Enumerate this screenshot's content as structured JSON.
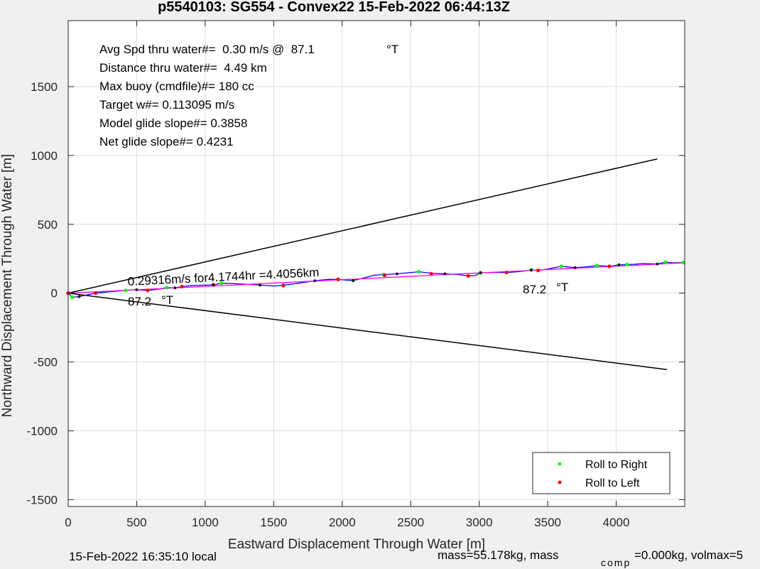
{
  "chart_data": {
    "type": "line",
    "title": "p5540103: SG554 - Convex22 15-Feb-2022 06:44:13Z",
    "xlabel": "Eastward Displacement Through Water [m]",
    "ylabel": "Northward Displacement Through Water [m]",
    "xlim": [
      0,
      4500
    ],
    "ylim": [
      -1550,
      1980
    ],
    "x_ticks": [
      0,
      500,
      1000,
      1500,
      2000,
      2500,
      3000,
      3500,
      4000
    ],
    "y_ticks": [
      -1500,
      -1000,
      -500,
      0,
      500,
      1000,
      1500
    ],
    "grid": true,
    "legend_position": "bottom-right",
    "info_lines": [
      "Avg Spd thru water#=  0.30 m/s @  87.1",
      "Distance thru water#=  4.49 km",
      "Max buoy (cmdfile)#= 180 cc",
      "Target w#= 0.113095 m/s",
      "Model glide slope#= 0.3858",
      "Net glide slope#= 0.4231"
    ],
    "info_unit": "°T",
    "annotations": {
      "speed_text": "0.29316m/s for4.1744hr =4.4056km",
      "heading_left": "87.2",
      "heading_right": "87.2",
      "heading_unit": "°T"
    },
    "footer_left": "15-Feb-2022 16:35:10 local",
    "footer_right_main": "mass=55.178kg, mass",
    "footer_right_sub": "comp",
    "footer_right_rest": "=0.000kg, volmax=5",
    "cone_lines": [
      {
        "name": "upper-bound",
        "x": [
          0,
          4300
        ],
        "y": [
          0,
          975
        ],
        "color": "#000000"
      },
      {
        "name": "lower-bound",
        "x": [
          0,
          4370
        ],
        "y": [
          0,
          -555
        ],
        "color": "#000000"
      }
    ],
    "series": [
      {
        "name": "track",
        "color": "#0000ff",
        "x": [
          0,
          30,
          80,
          200,
          300,
          420,
          500,
          580,
          650,
          720,
          780,
          830,
          900,
          1000,
          1060,
          1120,
          1200,
          1300,
          1400,
          1500,
          1580,
          1680,
          1800,
          1900,
          1970,
          2030,
          2080,
          2150,
          2230,
          2300,
          2400,
          2480,
          2560,
          2650,
          2750,
          2850,
          2920,
          2970,
          3010,
          3100,
          3200,
          3280,
          3380,
          3430,
          3500,
          3600,
          3700,
          3780,
          3860,
          3950,
          4020,
          4080,
          4130,
          4200,
          4300,
          4360,
          4420,
          4500
        ],
        "y": [
          0,
          -30,
          -25,
          0,
          10,
          20,
          25,
          20,
          28,
          40,
          38,
          48,
          55,
          58,
          60,
          72,
          70,
          65,
          58,
          52,
          58,
          72,
          90,
          100,
          100,
          95,
          92,
          108,
          130,
          135,
          140,
          148,
          155,
          145,
          140,
          135,
          125,
          128,
          148,
          150,
          150,
          155,
          168,
          165,
          175,
          195,
          185,
          190,
          200,
          195,
          205,
          208,
          210,
          215,
          212,
          225,
          220,
          222
        ]
      },
      {
        "name": "mean-path",
        "color": "#ff00ff",
        "x": [
          0,
          4500
        ],
        "y": [
          0,
          220
        ]
      },
      {
        "name": "Roll to Right",
        "color": "#00ff00",
        "x": [
          30,
          420,
          720,
          1120,
          1570,
          2080,
          2300,
          2560,
          3010,
          3380,
          3600,
          3860,
          4020,
          4080,
          4360,
          4490
        ],
        "y": [
          -30,
          20,
          40,
          72,
          58,
          92,
          135,
          155,
          148,
          168,
          195,
          200,
          205,
          208,
          225,
          222
        ]
      },
      {
        "name": "Roll to Left",
        "color": "#ff0000",
        "x": [
          0,
          200,
          580,
          830,
          1060,
          1570,
          1970,
          2310,
          2650,
          2920,
          3200,
          3430,
          3950
        ],
        "y": [
          0,
          0,
          20,
          48,
          60,
          55,
          100,
          130,
          140,
          125,
          150,
          165,
          195
        ]
      }
    ],
    "legend": [
      {
        "label": "Roll to Right",
        "color": "#00ff00"
      },
      {
        "label": "Roll to Left",
        "color": "#ff0000"
      }
    ]
  }
}
